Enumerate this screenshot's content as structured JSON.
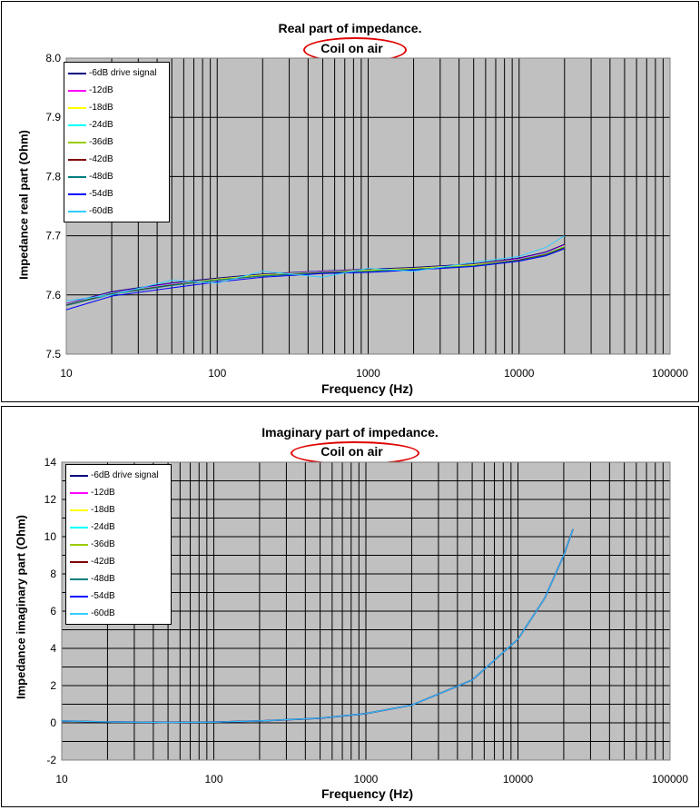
{
  "chart_data": [
    {
      "type": "line",
      "title": "Real part of impedance.",
      "subtitle": "Coil on air",
      "xlabel": "Frequency (Hz)",
      "ylabel": "Impedance real part (Ohm)",
      "xscale": "log",
      "xlim": [
        10,
        100000
      ],
      "ylim": [
        7.5,
        8.0
      ],
      "xticks": [
        "10",
        "100",
        "1000",
        "10000",
        "100000"
      ],
      "yticks": [
        "7.5",
        "7.6",
        "7.7",
        "7.8",
        "7.9",
        "8.0"
      ],
      "grid": true,
      "legend_position": "top-left",
      "x": [
        10,
        20,
        50,
        100,
        200,
        500,
        1000,
        2000,
        5000,
        10000,
        15000,
        20000
      ],
      "series": [
        {
          "name": "-6dB drive signal",
          "color": "#000080",
          "values": [
            7.585,
            7.605,
            7.62,
            7.628,
            7.635,
            7.64,
            7.643,
            7.646,
            7.652,
            7.662,
            7.672,
            7.685
          ]
        },
        {
          "name": "-12dB",
          "color": "#ff00ff",
          "values": [
            7.585,
            7.604,
            7.619,
            7.627,
            7.634,
            7.64,
            7.642,
            7.645,
            7.651,
            7.661,
            7.671,
            7.684
          ]
        },
        {
          "name": "-18dB",
          "color": "#ffff00",
          "values": [
            7.584,
            7.603,
            7.618,
            7.627,
            7.634,
            7.639,
            7.642,
            7.645,
            7.651,
            7.66,
            7.67,
            7.683
          ]
        },
        {
          "name": "-24dB",
          "color": "#00ffff",
          "values": [
            7.584,
            7.603,
            7.618,
            7.626,
            7.633,
            7.639,
            7.641,
            7.644,
            7.65,
            7.66,
            7.67,
            7.682
          ]
        },
        {
          "name": "-36dB",
          "color": "#99cc00",
          "values": [
            7.583,
            7.602,
            7.617,
            7.626,
            7.633,
            7.638,
            7.641,
            7.644,
            7.65,
            7.659,
            7.669,
            7.681
          ]
        },
        {
          "name": "-42dB",
          "color": "#800000",
          "values": [
            7.583,
            7.602,
            7.617,
            7.625,
            7.632,
            7.638,
            7.64,
            7.643,
            7.649,
            7.659,
            7.668,
            7.68
          ]
        },
        {
          "name": "-48dB",
          "color": "#008080",
          "values": [
            7.582,
            7.601,
            7.616,
            7.625,
            7.632,
            7.637,
            7.64,
            7.643,
            7.649,
            7.658,
            7.667,
            7.679
          ]
        },
        {
          "name": "-54dB",
          "color": "#0000ff",
          "values": [
            7.575,
            7.598,
            7.612,
            7.622,
            7.63,
            7.636,
            7.638,
            7.642,
            7.648,
            7.657,
            7.666,
            7.678
          ]
        },
        {
          "name": "-60dB",
          "color": "#33ccff",
          "values": [
            7.59,
            7.6,
            7.625,
            7.62,
            7.64,
            7.63,
            7.645,
            7.64,
            7.655,
            7.665,
            7.68,
            7.7
          ]
        }
      ]
    },
    {
      "type": "line",
      "title": "Imaginary part of impedance.",
      "subtitle": "Coil on air",
      "xlabel": "Frequency (Hz)",
      "ylabel": "Impedance imaginary part (Ohm)",
      "xscale": "log",
      "xlim": [
        10,
        100000
      ],
      "ylim": [
        -2,
        14
      ],
      "xticks": [
        "10",
        "100",
        "1000",
        "10000",
        "100000"
      ],
      "yticks": [
        "-2",
        "0",
        "2",
        "4",
        "6",
        "8",
        "10",
        "12",
        "14"
      ],
      "grid": true,
      "legend_position": "top-left",
      "x": [
        10,
        20,
        50,
        100,
        200,
        500,
        1000,
        2000,
        5000,
        10000,
        15000,
        20000,
        23000
      ],
      "series": [
        {
          "name": "-6dB drive signal",
          "color": "#000080",
          "values": [
            0.1,
            0.05,
            0.02,
            0.04,
            0.1,
            0.25,
            0.5,
            0.95,
            2.3,
            4.5,
            6.7,
            9.0,
            10.4
          ]
        },
        {
          "name": "-12dB",
          "color": "#ff00ff",
          "values": [
            0.1,
            0.05,
            0.02,
            0.04,
            0.1,
            0.25,
            0.5,
            0.95,
            2.3,
            4.5,
            6.7,
            9.0,
            10.4
          ]
        },
        {
          "name": "-18dB",
          "color": "#ffff00",
          "values": [
            0.1,
            0.05,
            0.02,
            0.04,
            0.1,
            0.25,
            0.5,
            0.95,
            2.3,
            4.5,
            6.7,
            9.0,
            10.4
          ]
        },
        {
          "name": "-24dB",
          "color": "#00ffff",
          "values": [
            0.1,
            0.05,
            0.02,
            0.04,
            0.1,
            0.25,
            0.5,
            0.95,
            2.3,
            4.5,
            6.7,
            9.0,
            10.4
          ]
        },
        {
          "name": "-36dB",
          "color": "#99cc00",
          "values": [
            0.1,
            0.05,
            0.02,
            0.04,
            0.1,
            0.25,
            0.5,
            0.95,
            2.3,
            4.5,
            6.7,
            9.0,
            10.4
          ]
        },
        {
          "name": "-42dB",
          "color": "#800000",
          "values": [
            0.1,
            0.05,
            0.02,
            0.04,
            0.1,
            0.25,
            0.5,
            0.95,
            2.3,
            4.5,
            6.7,
            9.0,
            10.4
          ]
        },
        {
          "name": "-48dB",
          "color": "#008080",
          "values": [
            0.1,
            0.05,
            0.02,
            0.04,
            0.1,
            0.25,
            0.5,
            0.95,
            2.3,
            4.5,
            6.7,
            9.0,
            10.4
          ]
        },
        {
          "name": "-54dB",
          "color": "#0000ff",
          "values": [
            0.1,
            0.05,
            0.02,
            0.04,
            0.1,
            0.25,
            0.5,
            0.95,
            2.3,
            4.5,
            6.7,
            9.0,
            10.4
          ]
        },
        {
          "name": "-60dB",
          "color": "#33ccff",
          "values": [
            0.1,
            0.05,
            0.02,
            0.04,
            0.1,
            0.25,
            0.5,
            0.95,
            2.3,
            4.5,
            6.7,
            9.0,
            10.4
          ]
        }
      ]
    }
  ]
}
